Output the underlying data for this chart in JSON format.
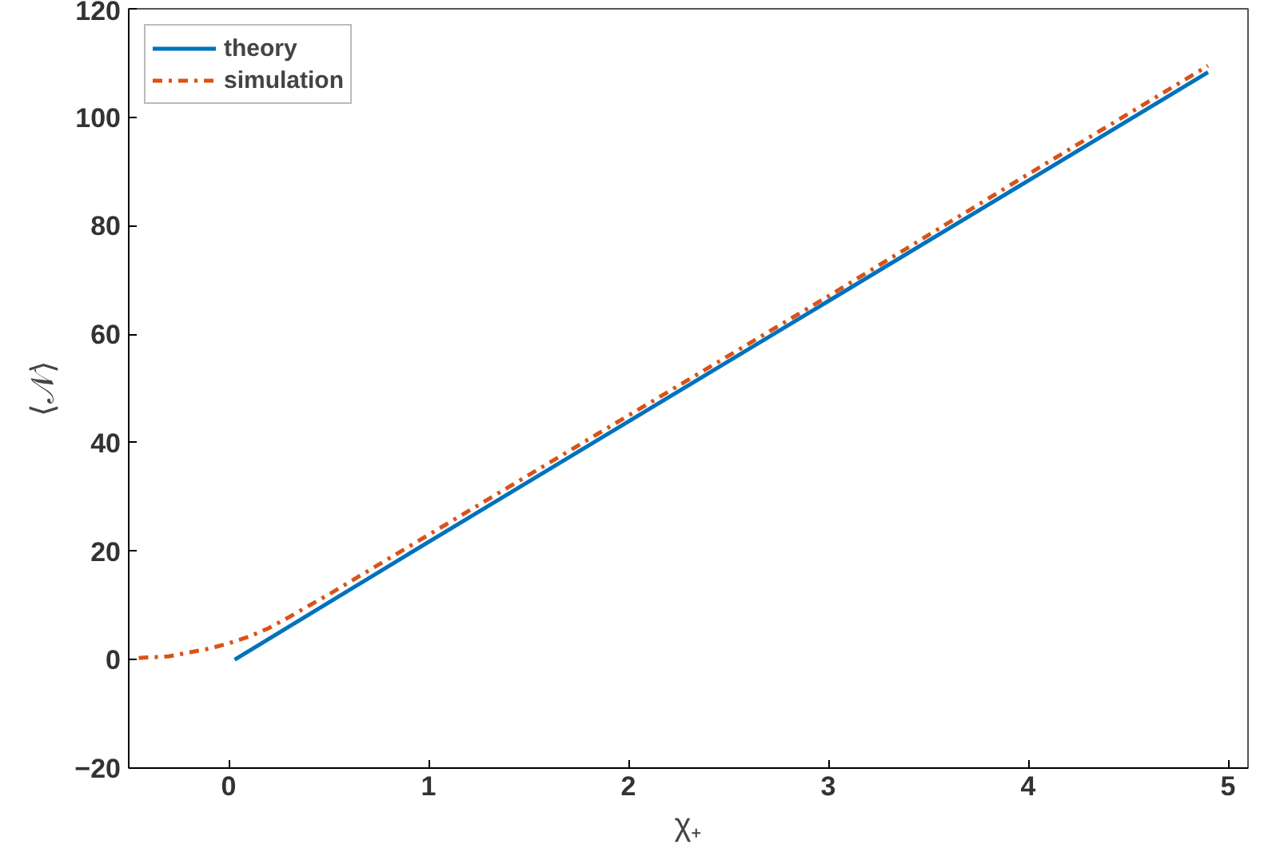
{
  "chart_data": {
    "type": "line",
    "xlabel": "χ₊",
    "ylabel": "⟨𝒩⟩",
    "xlim": [
      -0.5,
      5.1
    ],
    "xticks": [
      0,
      1,
      2,
      3,
      4,
      5
    ],
    "ylim": [
      -20,
      120
    ],
    "yticks": [
      -20,
      0,
      20,
      40,
      60,
      80,
      100,
      120
    ],
    "grid": false,
    "legend": "top left",
    "series": [
      {
        "name": "theory",
        "color": "#0072bd",
        "line_style": "solid",
        "x": [
          0.03,
          1,
          2,
          3,
          4,
          4.9
        ],
        "values": [
          0,
          21.7,
          43.9,
          66.1,
          88.3,
          108.3
        ]
      },
      {
        "name": "simulation",
        "color": "#d95319",
        "line_style": "dashed",
        "x": [
          -0.45,
          -0.3,
          -0.2,
          -0.1,
          0,
          0.1,
          0.2,
          0.3,
          0.5,
          1,
          2,
          3,
          3.8,
          4,
          4.9
        ],
        "values": [
          0.3,
          0.6,
          1.3,
          2,
          3,
          4.2,
          5.8,
          7.8,
          12,
          23,
          45,
          67,
          85,
          89.5,
          109.5
        ]
      }
    ]
  }
}
